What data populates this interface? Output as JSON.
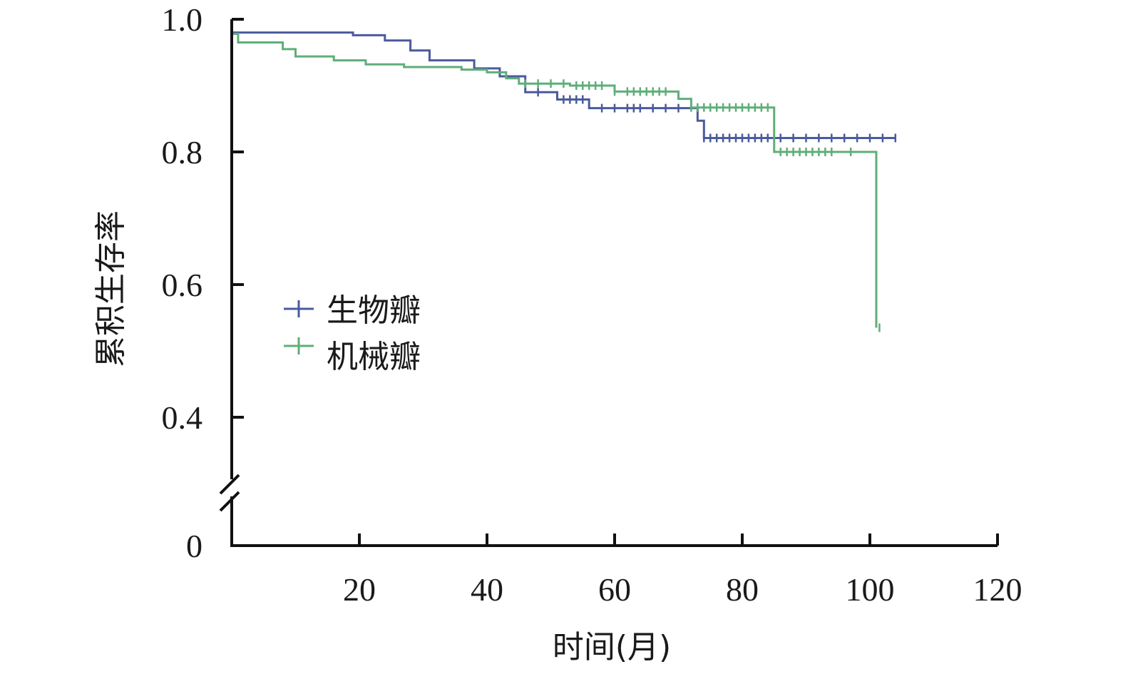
{
  "chart_data": {
    "type": "line",
    "title": "",
    "xlabel": "时间(月)",
    "ylabel": "累积生存率",
    "xlim": [
      0,
      120
    ],
    "ylim": [
      0,
      1.0
    ],
    "y_axis_break": true,
    "x_ticks": [
      20,
      40,
      60,
      80,
      100,
      120
    ],
    "y_ticks": [
      0,
      0.4,
      0.6,
      0.8,
      1.0
    ],
    "y_tick_labels": [
      "0",
      "0.4",
      "0.6",
      "0.8",
      "1.0"
    ],
    "grid": false,
    "legend_position": "center-left",
    "series": [
      {
        "name": "生物瓣",
        "color": "#4a5a9c",
        "step": true,
        "points": [
          [
            0,
            0.98
          ],
          [
            2,
            0.98
          ],
          [
            5,
            0.98
          ],
          [
            19,
            0.976
          ],
          [
            24,
            0.968
          ],
          [
            28,
            0.953
          ],
          [
            31,
            0.938
          ],
          [
            38,
            0.926
          ],
          [
            42,
            0.914
          ],
          [
            46,
            0.89
          ],
          [
            51,
            0.879
          ],
          [
            56,
            0.866
          ],
          [
            73,
            0.847
          ],
          [
            74,
            0.821
          ],
          [
            104,
            0.821
          ]
        ],
        "censor_x": [
          48,
          52,
          53,
          54,
          55,
          58,
          60,
          62,
          63,
          64,
          66,
          68,
          70,
          74,
          75,
          76,
          77,
          78,
          79,
          80,
          81,
          82,
          83,
          84,
          86,
          88,
          90,
          92,
          94,
          96,
          98,
          100,
          102,
          104
        ]
      },
      {
        "name": "机械瓣",
        "color": "#5fae78",
        "step": true,
        "points": [
          [
            0,
            0.978
          ],
          [
            1,
            0.965
          ],
          [
            8,
            0.955
          ],
          [
            10,
            0.944
          ],
          [
            16,
            0.938
          ],
          [
            21,
            0.932
          ],
          [
            27,
            0.928
          ],
          [
            36,
            0.924
          ],
          [
            40,
            0.92
          ],
          [
            43,
            0.911
          ],
          [
            45,
            0.903
          ],
          [
            53,
            0.9
          ],
          [
            60,
            0.891
          ],
          [
            70,
            0.88
          ],
          [
            72,
            0.867
          ],
          [
            85,
            0.8
          ],
          [
            101,
            0.8
          ],
          [
            101,
            0.535
          ]
        ],
        "censor_x": [
          46,
          48,
          50,
          52,
          54,
          55,
          56,
          57,
          58,
          60,
          62,
          63,
          64,
          65,
          66,
          67,
          68,
          72,
          73,
          74,
          75,
          76,
          77,
          78,
          79,
          80,
          81,
          82,
          83,
          84,
          86,
          87,
          88,
          89,
          90,
          91,
          92,
          93,
          94,
          97,
          101.5
        ]
      }
    ]
  }
}
